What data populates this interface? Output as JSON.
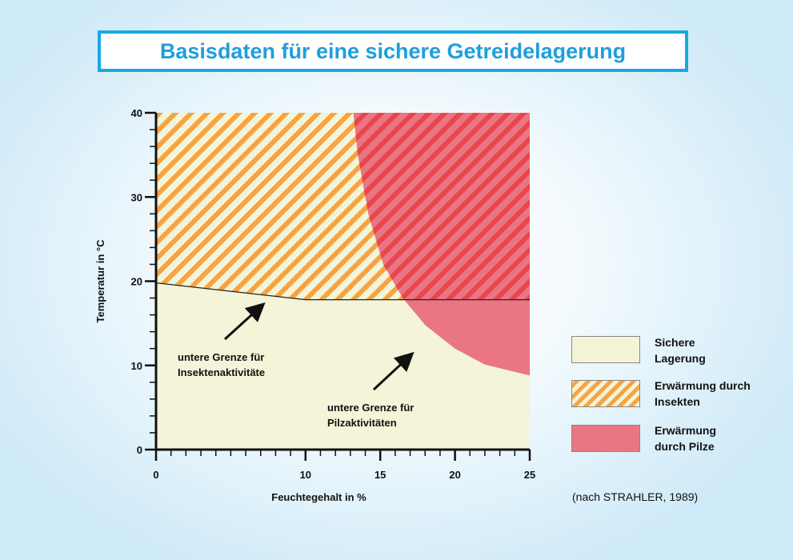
{
  "chart_data": {
    "type": "region",
    "title": "Basisdaten für eine sichere Getreidelagerung",
    "x_label": "Feuchtegehalt in %",
    "y_label": "Temperatur in °C",
    "xlim": [
      0,
      25
    ],
    "ylim": [
      0,
      40
    ],
    "xticks": [
      0,
      10,
      15,
      20,
      25
    ],
    "yticks": [
      0,
      10,
      20,
      30,
      40
    ],
    "xticks_minor": [
      1,
      2,
      3,
      4,
      5,
      6,
      7,
      8,
      9,
      11,
      12,
      13,
      14,
      16,
      17,
      18,
      19,
      21,
      22,
      23,
      24
    ],
    "yticks_minor": [
      2,
      4,
      6,
      8,
      12,
      14,
      16,
      18,
      22,
      24,
      26,
      28,
      32,
      34,
      36,
      38
    ],
    "series": [
      {
        "name": "Sichere Lagerung",
        "color": "#f4f4d9"
      },
      {
        "name": "Erwärmung durch Insekten",
        "color": "#f6a443",
        "pattern": "hatch",
        "x": [
          0,
          10,
          25
        ],
        "values": [
          19.8,
          17.8,
          17.8
        ]
      },
      {
        "name": "Erwärmung durch Pilze",
        "color": "#e97682",
        "hatch_color": "#e9454f",
        "x": [
          13.2,
          13.5,
          14.2,
          15.2,
          16.5,
          18,
          20,
          22,
          25
        ],
        "values": [
          40,
          35,
          28,
          22,
          18,
          14.8,
          12,
          10.1,
          8.8
        ]
      }
    ],
    "annotations": [
      "untere Grenze für Insektenaktivitäte",
      "untere Grenze für Pilzaktivitäten"
    ],
    "source": "(nach STRAHLER, 1989)"
  }
}
